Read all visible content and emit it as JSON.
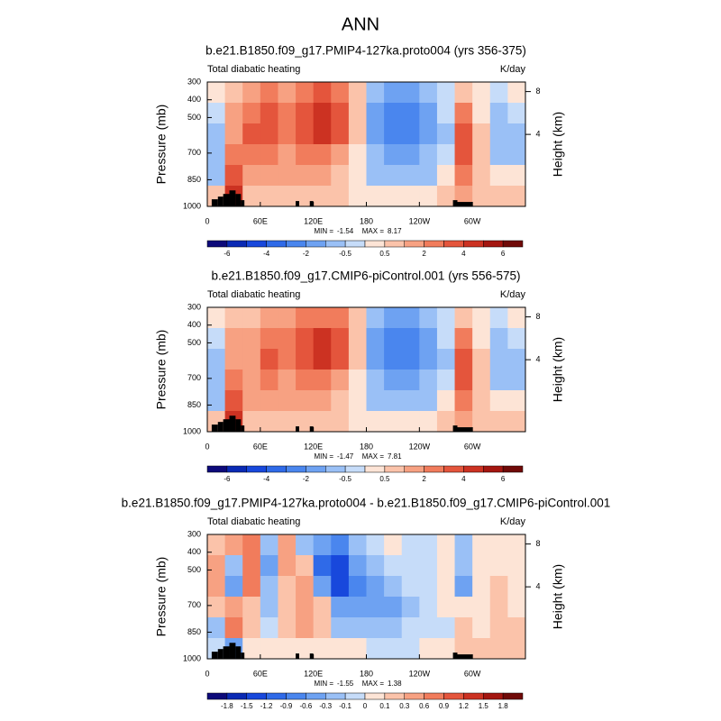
{
  "title": "ANN",
  "chart_data": [
    {
      "type": "contour",
      "title": "b.e21.B1850.f09_g17.PMIP4-127ka.proto004 (yrs 356-375)",
      "left_label": "Total diabatic heating",
      "right_label": "K/day",
      "ylabel": "Pressure (mb)",
      "y2label": "Height (km)",
      "xlim": [
        0,
        360
      ],
      "xticks": [
        0,
        {
          "value": 60,
          "label": "60E"
        },
        {
          "value": 120,
          "label": "120E"
        },
        180,
        {
          "value": 240,
          "label": "120W"
        },
        {
          "value": 300,
          "label": "60W"
        }
      ],
      "ylim": [
        1000,
        300
      ],
      "yticks": [
        300,
        400,
        500,
        700,
        850,
        1000
      ],
      "y2ticks": [
        4,
        8
      ],
      "stats": {
        "min_label": "MIN =",
        "min": -1.54,
        "max_label": "MAX =",
        "max": 8.17
      },
      "colorbar": {
        "levels": [
          -6,
          -5,
          -4,
          -3,
          -2,
          -1,
          -0.5,
          0,
          0.5,
          1,
          2,
          3,
          4,
          5,
          6
        ],
        "labeled": [
          -6,
          -4,
          -2,
          -0.5,
          0.5,
          2,
          4,
          6
        ],
        "colors": [
          "#0d0a7a",
          "#0a2ab4",
          "#1848dc",
          "#2f6ae8",
          "#4a86ee",
          "#6ea2f2",
          "#9ac0f6",
          "#c6dcf9",
          "#fde4d6",
          "#fbc3aa",
          "#f7a182",
          "#f17c5c",
          "#e4553c",
          "#cc3222",
          "#a41610",
          "#700a08"
        ]
      },
      "z": [
        [
          0.3,
          0.6,
          1.5,
          2.5,
          1.5,
          2.5,
          3.5,
          2.5,
          0.6,
          -1,
          -1.5,
          -1.5,
          -1,
          -0.3,
          0.6,
          0.3,
          -0.3,
          0.3
        ],
        [
          -0.3,
          1.5,
          2.5,
          3.5,
          2.5,
          3.5,
          4.5,
          3.5,
          0.6,
          -1.5,
          -2.5,
          -2.5,
          -1.5,
          -0.3,
          2.5,
          0.3,
          -0.7,
          -0.3
        ],
        [
          -0.7,
          1.5,
          3.5,
          3.5,
          2.5,
          3.5,
          4.5,
          3.5,
          0.6,
          -1.5,
          -2.5,
          -2.5,
          -1.5,
          -0.7,
          3.5,
          0.6,
          -0.7,
          -0.7
        ],
        [
          -0.7,
          2.5,
          2.5,
          2.5,
          1.5,
          2.5,
          2.5,
          1.5,
          0.3,
          -1,
          -1.5,
          -1.5,
          -1,
          -0.3,
          3.5,
          0.6,
          -0.7,
          -0.7
        ],
        [
          -1,
          3.5,
          1.5,
          1.5,
          1.5,
          1.5,
          1.5,
          0.6,
          0.3,
          -0.7,
          -1,
          -1,
          -0.7,
          0.3,
          2.5,
          0.6,
          0.3,
          0.3
        ],
        [
          0.6,
          4.5,
          0.6,
          0.6,
          0.6,
          0.6,
          0.6,
          0.6,
          0.3,
          0.3,
          0.3,
          0.3,
          0.3,
          0.6,
          1.5,
          0.6,
          0.6,
          0.6
        ]
      ]
    },
    {
      "type": "contour",
      "title": "b.e21.B1850.f09_g17.CMIP6-piControl.001 (yrs 556-575)",
      "left_label": "Total diabatic heating",
      "right_label": "K/day",
      "ylabel": "Pressure (mb)",
      "y2label": "Height (km)",
      "xlim": [
        0,
        360
      ],
      "xticks": [
        0,
        {
          "value": 60,
          "label": "60E"
        },
        {
          "value": 120,
          "label": "120E"
        },
        180,
        {
          "value": 240,
          "label": "120W"
        },
        {
          "value": 300,
          "label": "60W"
        }
      ],
      "ylim": [
        1000,
        300
      ],
      "yticks": [
        300,
        400,
        500,
        700,
        850,
        1000
      ],
      "y2ticks": [
        4,
        8
      ],
      "stats": {
        "min_label": "MIN =",
        "min": -1.47,
        "max_label": "MAX =",
        "max": 7.81
      },
      "colorbar": {
        "levels": [
          -6,
          -5,
          -4,
          -3,
          -2,
          -1,
          -0.5,
          0,
          0.5,
          1,
          2,
          3,
          4,
          5,
          6
        ],
        "labeled": [
          -6,
          -4,
          -2,
          -0.5,
          0.5,
          2,
          4,
          6
        ],
        "colors": [
          "#0d0a7a",
          "#0a2ab4",
          "#1848dc",
          "#2f6ae8",
          "#4a86ee",
          "#6ea2f2",
          "#9ac0f6",
          "#c6dcf9",
          "#fde4d6",
          "#fbc3aa",
          "#f7a182",
          "#f17c5c",
          "#e4553c",
          "#cc3222",
          "#a41610",
          "#700a08"
        ]
      },
      "z": [
        [
          0.3,
          0.6,
          0.6,
          1.5,
          1.5,
          2.5,
          2.5,
          2.5,
          0.6,
          -1,
          -1.5,
          -1.5,
          -1,
          -0.3,
          0.6,
          0.3,
          -0.3,
          0.3
        ],
        [
          -0.3,
          1.5,
          1.5,
          2.5,
          2.5,
          3.5,
          4.5,
          3.5,
          0.6,
          -1.5,
          -2.5,
          -2.5,
          -1.5,
          -0.3,
          2.5,
          0.3,
          -0.7,
          -0.3
        ],
        [
          -0.7,
          1.5,
          1.5,
          3.5,
          2.5,
          3.5,
          4.5,
          3.5,
          0.6,
          -1.5,
          -2.5,
          -2.5,
          -1.5,
          -0.7,
          3.5,
          0.6,
          -0.7,
          -0.7
        ],
        [
          -0.7,
          2.5,
          1.5,
          2.5,
          1.5,
          2.5,
          2.5,
          1.5,
          0.3,
          -1,
          -1.5,
          -1.5,
          -1,
          -0.3,
          3.5,
          0.6,
          -0.7,
          -0.7
        ],
        [
          -1,
          3.5,
          1.5,
          1.5,
          1.5,
          1.5,
          1.5,
          0.6,
          0.3,
          -0.7,
          -1,
          -1,
          -0.7,
          0.3,
          2.5,
          0.6,
          0.3,
          0.3
        ],
        [
          0.6,
          4.5,
          0.6,
          0.6,
          0.6,
          0.6,
          0.6,
          0.6,
          0.3,
          0.3,
          0.3,
          0.3,
          0.3,
          0.6,
          1.5,
          0.6,
          0.6,
          0.6
        ]
      ]
    },
    {
      "type": "contour",
      "title": "b.e21.B1850.f09_g17.PMIP4-127ka.proto004 - b.e21.B1850.f09_g17.CMIP6-piControl.001",
      "left_label": "Total diabatic heating",
      "right_label": "K/day",
      "ylabel": "Pressure (mb)",
      "y2label": "Height (km)",
      "xlim": [
        0,
        360
      ],
      "xticks": [
        0,
        {
          "value": 60,
          "label": "60E"
        },
        {
          "value": 120,
          "label": "120E"
        },
        180,
        {
          "value": 240,
          "label": "120W"
        },
        {
          "value": 300,
          "label": "60W"
        }
      ],
      "ylim": [
        1000,
        300
      ],
      "yticks": [
        300,
        400,
        500,
        700,
        850,
        1000
      ],
      "y2ticks": [
        4,
        8
      ],
      "stats": {
        "min_label": "MIN =",
        "min": -1.55,
        "max_label": "MAX =",
        "max": 1.38
      },
      "colorbar": {
        "levels": [
          -1.8,
          -1.5,
          -1.2,
          -0.9,
          -0.6,
          -0.3,
          -0.1,
          0,
          0.1,
          0.3,
          0.6,
          0.9,
          1.2,
          1.5,
          1.8
        ],
        "labeled": [
          -1.8,
          -1.5,
          -1.2,
          -0.9,
          -0.6,
          -0.3,
          -0.1,
          0,
          0.1,
          0.3,
          0.6,
          0.9,
          1.2,
          1.5,
          1.8
        ],
        "colors": [
          "#0d0a7a",
          "#0a2ab4",
          "#1848dc",
          "#2f6ae8",
          "#4a86ee",
          "#6ea2f2",
          "#9ac0f6",
          "#c6dcf9",
          "#fde4d6",
          "#fbc3aa",
          "#f7a182",
          "#f17c5c",
          "#e4553c",
          "#cc3222",
          "#a41610",
          "#700a08"
        ]
      },
      "z": [
        [
          0.2,
          0.4,
          0.7,
          -0.2,
          0.4,
          -0.2,
          -0.4,
          -0.7,
          -0.2,
          -0.05,
          0.05,
          -0.05,
          -0.05,
          0.05,
          -0.2,
          0.05,
          0.05,
          0.05
        ],
        [
          0.4,
          -0.2,
          0.7,
          -0.4,
          0.4,
          0.2,
          -1,
          -1.3,
          -0.4,
          -0.2,
          -0.05,
          -0.05,
          -0.05,
          0.05,
          -0.2,
          0.05,
          0.05,
          0.05
        ],
        [
          0.4,
          -0.4,
          0.7,
          -0.2,
          0.2,
          0.4,
          -0.4,
          -1.3,
          -0.7,
          -0.4,
          -0.2,
          -0.05,
          -0.05,
          0.05,
          -0.4,
          0.05,
          0.2,
          0.05
        ],
        [
          0.2,
          0.4,
          0.2,
          -0.2,
          0.2,
          0.4,
          0.2,
          -0.4,
          -0.4,
          -0.4,
          -0.4,
          -0.2,
          -0.05,
          0.05,
          0.05,
          0.05,
          0.2,
          0.05
        ],
        [
          -0.2,
          0.7,
          0.2,
          -0.05,
          0.2,
          0.4,
          0.2,
          -0.2,
          -0.2,
          -0.2,
          -0.2,
          -0.05,
          -0.05,
          -0.05,
          0.2,
          0.05,
          0.2,
          0.2
        ],
        [
          -0.05,
          -0.4,
          0.05,
          0.05,
          0.05,
          0.05,
          0.05,
          0.05,
          0.05,
          -0.05,
          -0.05,
          -0.05,
          0.05,
          0.05,
          0.2,
          0.2,
          0.2,
          0.2
        ]
      ]
    }
  ]
}
